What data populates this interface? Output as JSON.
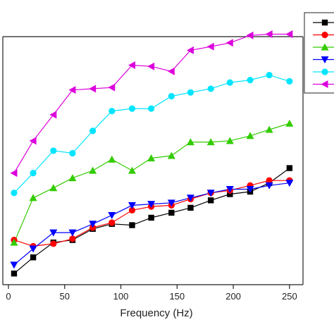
{
  "chart_data": {
    "type": "line",
    "xlabel": "Frequency (Hz)",
    "ylabel": "",
    "title": "",
    "xlim": [
      -5,
      262
    ],
    "ylim": [
      0,
      100
    ],
    "x_ticks": [
      0,
      50,
      100,
      150,
      200,
      250
    ],
    "x_tick_labels": [
      "0",
      "50",
      "100",
      "150",
      "200",
      "250"
    ],
    "grid": false,
    "legend_position": "top-right",
    "series": [
      {
        "marker": "square",
        "color": "#000000",
        "x": [
          5,
          22,
          40,
          57,
          75,
          92,
          110,
          127,
          145,
          162,
          180,
          197,
          215,
          232,
          250
        ],
        "y": [
          4.5,
          11.0,
          17.0,
          18.0,
          22.5,
          24.5,
          24.0,
          27.0,
          29.0,
          31.0,
          34.0,
          36.5,
          37.5,
          41.0,
          47.0
        ]
      },
      {
        "marker": "circle",
        "color": "#ff0000",
        "x": [
          5,
          22,
          40,
          57,
          75,
          92,
          110,
          127,
          145,
          162,
          180,
          197,
          215,
          232,
          250
        ],
        "y": [
          18.0,
          15.5,
          16.5,
          18.5,
          23.0,
          25.0,
          30.0,
          31.5,
          32.0,
          34.5,
          37.0,
          38.0,
          40.0,
          42.0,
          42.0
        ]
      },
      {
        "marker": "triangle-up",
        "color": "#33cc00",
        "x": [
          5,
          22,
          40,
          57,
          75,
          92,
          110,
          127,
          145,
          162,
          180,
          197,
          215,
          232,
          250
        ],
        "y": [
          17.0,
          35.0,
          39.0,
          43.0,
          46.0,
          50.5,
          46.0,
          51.0,
          52.0,
          57.5,
          57.5,
          58.0,
          60.0,
          62.5,
          65.0
        ]
      },
      {
        "marker": "triangle-down",
        "color": "#0000ff",
        "x": [
          5,
          22,
          40,
          57,
          75,
          92,
          110,
          127,
          145,
          162,
          180,
          197,
          215,
          232,
          250
        ],
        "y": [
          8.0,
          14.5,
          21.0,
          21.0,
          24.5,
          28.0,
          32.0,
          32.5,
          33.0,
          35.0,
          37.0,
          38.5,
          38.5,
          40.0,
          41.0
        ]
      },
      {
        "marker": "circle",
        "color": "#00e5ff",
        "x": [
          5,
          22,
          40,
          57,
          75,
          92,
          110,
          127,
          145,
          162,
          180,
          197,
          215,
          232,
          250
        ],
        "y": [
          37.0,
          45.0,
          54.0,
          53.0,
          62.0,
          70.0,
          71.0,
          71.0,
          76.0,
          77.5,
          79.0,
          81.5,
          82.5,
          84.5,
          82.0
        ]
      },
      {
        "marker": "triangle-left",
        "color": "#dd00dd",
        "x": [
          5,
          22,
          40,
          57,
          75,
          92,
          110,
          127,
          145,
          162,
          180,
          197,
          215,
          232,
          250
        ],
        "y": [
          45.0,
          58.0,
          68.5,
          78.5,
          79.0,
          79.5,
          88.5,
          88.0,
          86.0,
          94.5,
          96.0,
          97.5,
          100.5,
          101.0,
          101.0
        ]
      }
    ]
  }
}
